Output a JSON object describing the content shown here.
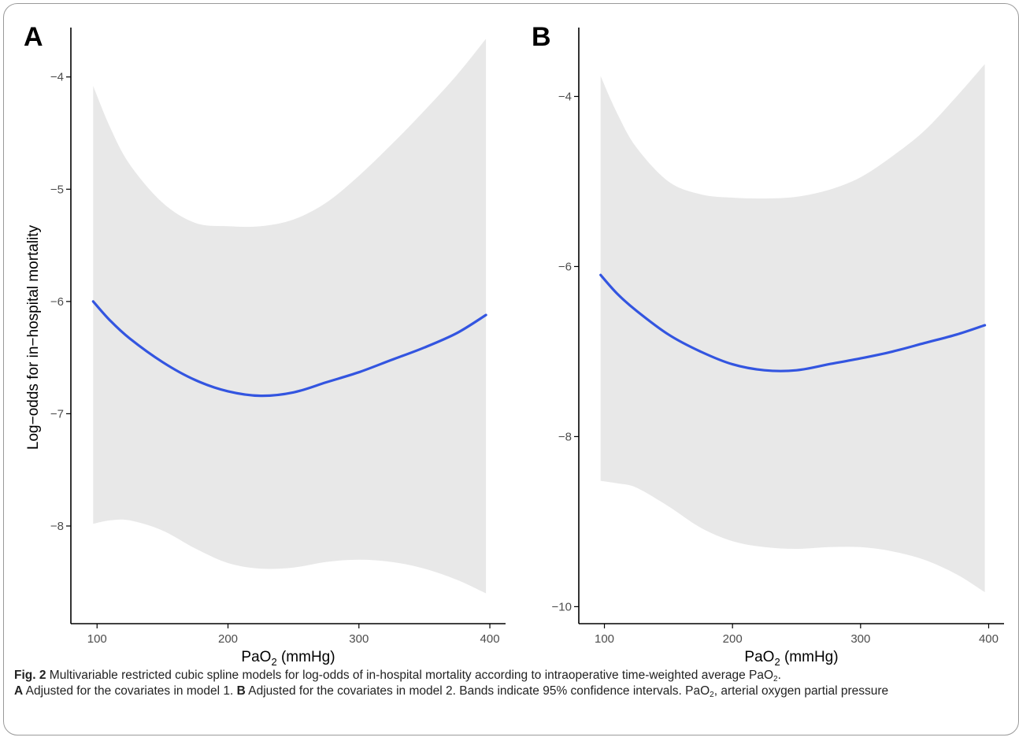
{
  "chart_data": [
    {
      "type": "line",
      "panel_label": "A",
      "xlabel": "PaO2 (mmHg)",
      "ylabel": "Log−odds for in−hospital mortality",
      "xlim": [
        80,
        412
      ],
      "ylim": [
        -8.87,
        -3.56
      ],
      "xticks": [
        100,
        200,
        300,
        400
      ],
      "yticks": [
        -8,
        -7,
        -6,
        -5,
        -4
      ],
      "grid": false,
      "series": [
        {
          "x": [
            97,
            110,
            125,
            150,
            175,
            200,
            225,
            250,
            275,
            300,
            325,
            350,
            375,
            397
          ],
          "y": [
            -6.0,
            -6.17,
            -6.33,
            -6.54,
            -6.7,
            -6.8,
            -6.84,
            -6.81,
            -6.72,
            -6.63,
            -6.52,
            -6.41,
            -6.28,
            -6.12
          ],
          "lower": [
            -7.98,
            -7.95,
            -7.95,
            -8.04,
            -8.2,
            -8.33,
            -8.38,
            -8.37,
            -8.32,
            -8.3,
            -8.32,
            -8.38,
            -8.48,
            -8.6
          ],
          "upper": [
            -4.08,
            -4.45,
            -4.78,
            -5.12,
            -5.3,
            -5.33,
            -5.33,
            -5.27,
            -5.12,
            -4.88,
            -4.6,
            -4.3,
            -3.98,
            -3.66
          ]
        }
      ]
    },
    {
      "type": "line",
      "panel_label": "B",
      "xlabel": "PaO2 (mmHg)",
      "ylabel": "",
      "xlim": [
        80,
        412
      ],
      "ylim": [
        -10.2,
        -3.19
      ],
      "xticks": [
        100,
        200,
        300,
        400
      ],
      "yticks": [
        -10,
        -8,
        -6,
        -4
      ],
      "grid": false,
      "series": [
        {
          "x": [
            97,
            110,
            125,
            150,
            175,
            200,
            225,
            250,
            275,
            300,
            325,
            350,
            375,
            397
          ],
          "y": [
            -6.1,
            -6.32,
            -6.52,
            -6.8,
            -7.0,
            -7.15,
            -7.22,
            -7.22,
            -7.15,
            -7.08,
            -7.0,
            -6.9,
            -6.8,
            -6.69
          ],
          "lower": [
            -8.52,
            -8.55,
            -8.6,
            -8.82,
            -9.07,
            -9.23,
            -9.3,
            -9.32,
            -9.3,
            -9.3,
            -9.35,
            -9.45,
            -9.62,
            -9.83
          ],
          "upper": [
            -3.76,
            -4.2,
            -4.6,
            -5.0,
            -5.15,
            -5.19,
            -5.2,
            -5.18,
            -5.1,
            -4.95,
            -4.7,
            -4.4,
            -4.0,
            -3.62
          ]
        }
      ]
    }
  ],
  "style": {
    "line_color": "#3355e0",
    "band_color": "#e8e8e8",
    "axis_color": "#000000"
  },
  "caption": {
    "fig_label": "Fig. 2",
    "line1": "Multivariable restricted cubic spline models for log-odds of in-hospital mortality according to intraoperative time-weighted average PaO",
    "line1_sub": "2",
    "line1_end": ".",
    "a_label": "A",
    "a_text": "Adjusted for the covariates in model 1.",
    "b_label": "B",
    "b_text": "Adjusted for the covariates in model 2. Bands indicate 95% confidence intervals. PaO",
    "b_sub": "2",
    "b_end": ", arterial oxygen partial pressure"
  }
}
